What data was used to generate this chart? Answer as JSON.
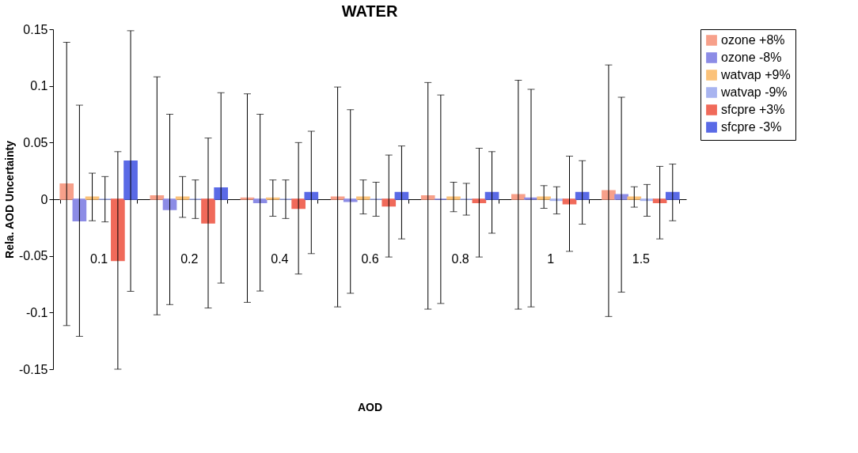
{
  "chart_data": {
    "type": "bar",
    "title": "WATER",
    "xlabel": "AOD",
    "ylabel": "Rela. AOD Uncertainty",
    "categories": [
      "0.1",
      "0.2",
      "0.4",
      "0.6",
      "0.8",
      "1",
      "1.5"
    ],
    "series": [
      {
        "name": "ozone +8%",
        "color": "#f7a08a",
        "values": [
          0.0135,
          0.003,
          0.001,
          0.002,
          0.003,
          0.004,
          0.0075
        ],
        "errors": [
          0.125,
          0.105,
          0.092,
          0.097,
          0.1,
          0.101,
          0.111
        ]
      },
      {
        "name": "ozone -8%",
        "color": "#8c8ce6",
        "values": [
          -0.019,
          -0.009,
          -0.003,
          -0.002,
          0.0,
          0.001,
          0.004
        ],
        "errors": [
          0.102,
          0.084,
          0.078,
          0.081,
          0.092,
          0.096,
          0.086
        ]
      },
      {
        "name": "watvap +9%",
        "color": "#fbc27a",
        "values": [
          0.002,
          0.002,
          0.001,
          0.002,
          0.002,
          0.002,
          0.002
        ],
        "errors": [
          0.021,
          0.018,
          0.016,
          0.015,
          0.013,
          0.01,
          0.009
        ]
      },
      {
        "name": "watvap -9%",
        "color": "#a8b4f0",
        "values": [
          0.0,
          0.0,
          0.0,
          0.0,
          0.0,
          -0.001,
          -0.001
        ],
        "errors": [
          0.02,
          0.017,
          0.017,
          0.015,
          0.014,
          0.012,
          0.014
        ]
      },
      {
        "name": "sfcpre +3%",
        "color": "#f06a5a",
        "values": [
          -0.054,
          -0.021,
          -0.008,
          -0.006,
          -0.003,
          -0.004,
          -0.003
        ],
        "errors": [
          0.096,
          0.075,
          0.058,
          0.045,
          0.048,
          0.042,
          0.032
        ]
      },
      {
        "name": "sfcpre -3%",
        "color": "#5a6ae6",
        "values": [
          0.0337,
          0.01,
          0.006,
          0.006,
          0.006,
          0.006,
          0.006
        ],
        "errors": [
          0.115,
          0.084,
          0.054,
          0.041,
          0.036,
          0.028,
          0.025
        ]
      }
    ],
    "ylim": [
      -0.15,
      0.15
    ],
    "yticks": [
      -0.15,
      -0.1,
      -0.05,
      0,
      0.05,
      0.1,
      0.15
    ],
    "legend": "right"
  }
}
